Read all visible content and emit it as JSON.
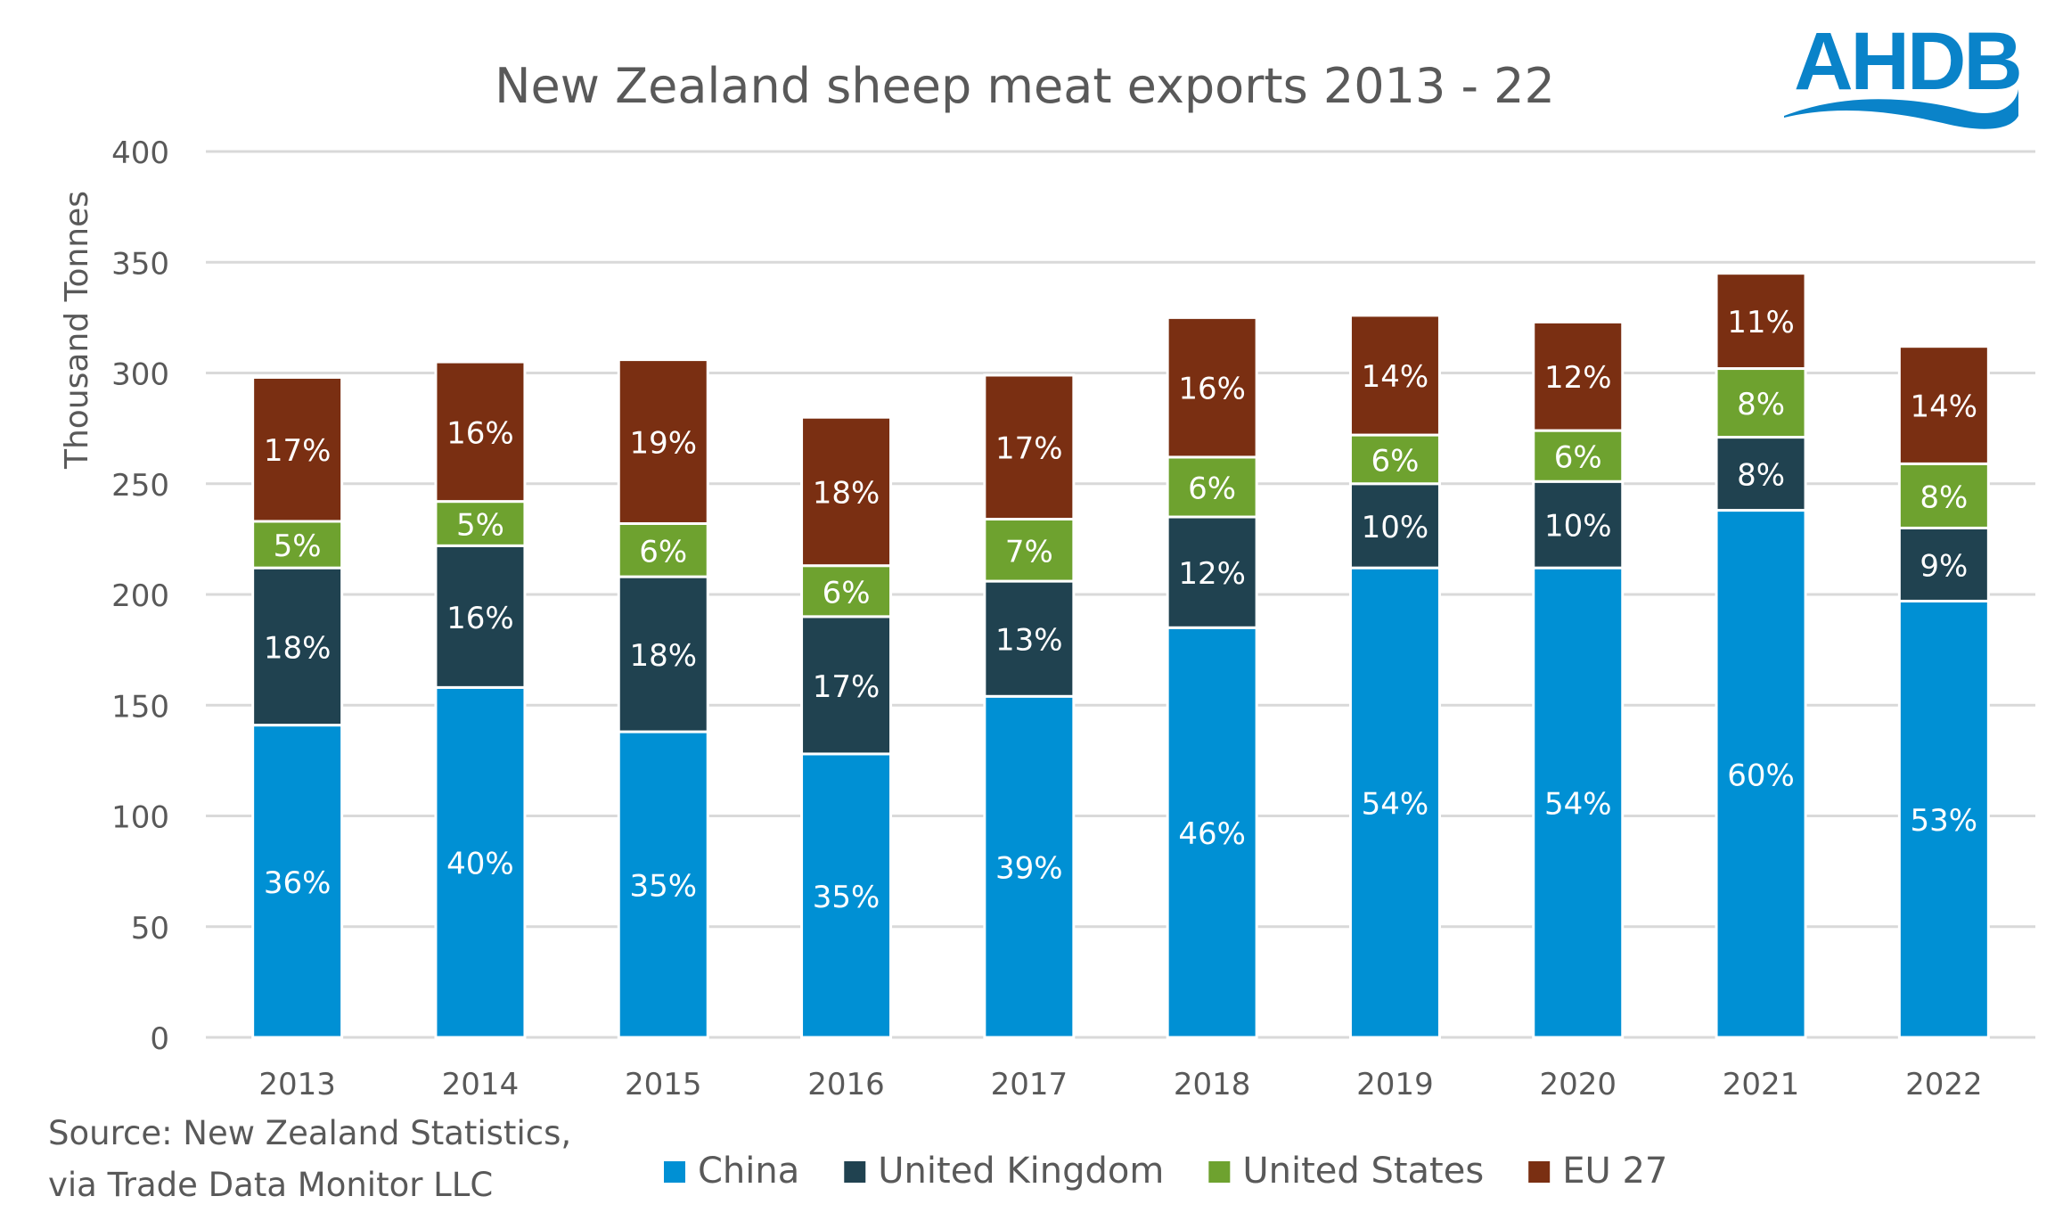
{
  "logo": {
    "text": "AHDB",
    "color": "#0a83c9"
  },
  "source": {
    "line1": "Source: New Zealand Statistics,",
    "line2": "via Trade Data Monitor LLC"
  },
  "chart_data": {
    "type": "bar",
    "stacked": true,
    "title": "New Zealand sheep meat exports 2013 - 22",
    "xlabel": "",
    "ylabel": "Thousand Tonnes",
    "ylim": [
      0,
      400
    ],
    "yticks": [
      0,
      50,
      100,
      150,
      200,
      250,
      300,
      350,
      400
    ],
    "grid": true,
    "legend": "bottom",
    "categories": [
      "2013",
      "2014",
      "2015",
      "2016",
      "2017",
      "2018",
      "2019",
      "2020",
      "2021",
      "2022"
    ],
    "series": [
      {
        "name": "China",
        "color": "#0090d4",
        "values": [
          141,
          158,
          138,
          128,
          154,
          185,
          212,
          212,
          238,
          197
        ],
        "labels": [
          "36%",
          "40%",
          "35%",
          "35%",
          "39%",
          "46%",
          "54%",
          "54%",
          "60%",
          "53%"
        ]
      },
      {
        "name": "United Kingdom",
        "color": "#204250",
        "values": [
          71,
          64,
          70,
          62,
          52,
          50,
          38,
          39,
          33,
          33
        ],
        "labels": [
          "18%",
          "16%",
          "18%",
          "17%",
          "13%",
          "12%",
          "10%",
          "10%",
          "8%",
          "9%"
        ]
      },
      {
        "name": "United States",
        "color": "#6ea22f",
        "values": [
          21,
          20,
          24,
          23,
          28,
          27,
          22,
          23,
          31,
          29
        ],
        "labels": [
          "5%",
          "5%",
          "6%",
          "6%",
          "7%",
          "6%",
          "6%",
          "6%",
          "8%",
          "8%"
        ]
      },
      {
        "name": "EU 27",
        "color": "#7a2f12",
        "values": [
          65,
          63,
          74,
          67,
          65,
          63,
          54,
          49,
          43,
          53
        ],
        "labels": [
          "17%",
          "16%",
          "19%",
          "18%",
          "17%",
          "16%",
          "14%",
          "12%",
          "11%",
          "14%"
        ]
      }
    ]
  }
}
